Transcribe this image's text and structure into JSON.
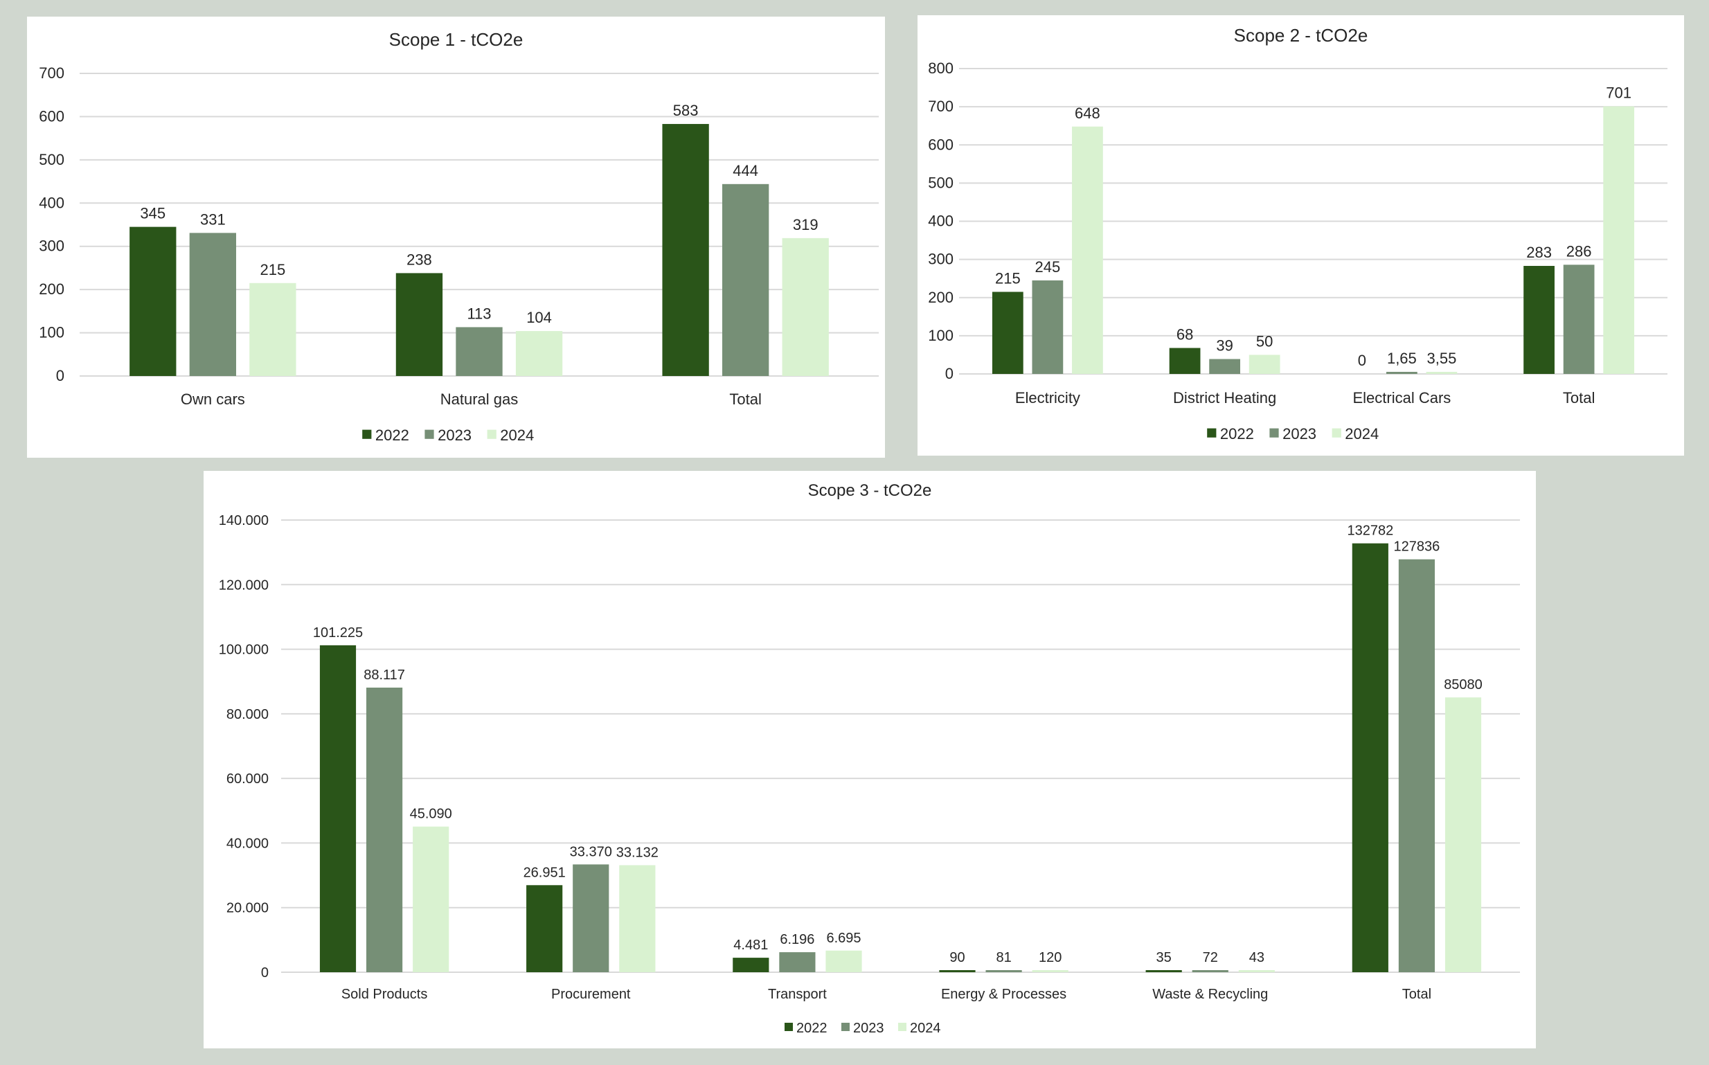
{
  "colors": {
    "2022": "#2a5519",
    "2023": "#768f76",
    "2024": "#d9f2d0",
    "grid": "#d9d9d9",
    "background": "#d0d7cf"
  },
  "chart_data": [
    {
      "type": "bar",
      "title": "Scope 1 - tCO2e",
      "categories": [
        "Own cars",
        "Natural gas",
        "Total"
      ],
      "series": [
        {
          "name": "2022",
          "values": [
            345,
            238,
            583
          ],
          "labels": [
            "345",
            "238",
            "583"
          ]
        },
        {
          "name": "2023",
          "values": [
            331,
            113,
            444
          ],
          "labels": [
            "331",
            "113",
            "444"
          ]
        },
        {
          "name": "2024",
          "values": [
            215,
            104,
            319
          ],
          "labels": [
            "215",
            "104",
            "319"
          ]
        }
      ],
      "ylim": [
        0,
        700
      ],
      "yticks": [
        "0",
        "100",
        "200",
        "300",
        "400",
        "500",
        "600",
        "700"
      ],
      "grid": true,
      "legend": "bottom"
    },
    {
      "type": "bar",
      "title": "Scope 2 - tCO2e",
      "categories": [
        "Electricity",
        "District Heating",
        "Electrical Cars",
        "Total"
      ],
      "series": [
        {
          "name": "2022",
          "values": [
            215,
            68,
            0,
            283
          ],
          "labels": [
            "215",
            "68",
            "0",
            "283"
          ]
        },
        {
          "name": "2023",
          "values": [
            245,
            39,
            1.65,
            286
          ],
          "labels": [
            "245",
            "39",
            "1,65",
            "286"
          ]
        },
        {
          "name": "2024",
          "values": [
            648,
            50,
            3.55,
            701
          ],
          "labels": [
            "648",
            "50",
            "3,55",
            "701"
          ]
        }
      ],
      "ylim": [
        0,
        800
      ],
      "yticks": [
        "0",
        "100",
        "200",
        "300",
        "400",
        "500",
        "600",
        "700",
        "800"
      ],
      "grid": true,
      "legend": "bottom"
    },
    {
      "type": "bar",
      "title": "Scope 3 - tCO2e",
      "categories": [
        "Sold Products",
        "Procurement",
        "Transport",
        "Energy & Processes",
        "Waste & Recycling",
        "Total"
      ],
      "series": [
        {
          "name": "2022",
          "values": [
            101225,
            26951,
            4481,
            90,
            35,
            132782
          ],
          "labels": [
            "101.225",
            "26.951",
            "4.481",
            "90",
            "35",
            "132782"
          ]
        },
        {
          "name": "2023",
          "values": [
            88117,
            33370,
            6196,
            81,
            72,
            127836
          ],
          "labels": [
            "88.117",
            "33.370",
            "6.196",
            "81",
            "72",
            "127836"
          ]
        },
        {
          "name": "2024",
          "values": [
            45090,
            33132,
            6695,
            120,
            43,
            85080
          ],
          "labels": [
            "45.090",
            "33.132",
            "6.695",
            "120",
            "43",
            "85080"
          ]
        }
      ],
      "ylim": [
        0,
        140000
      ],
      "yticks": [
        "0",
        "20.000",
        "40.000",
        "60.000",
        "80.000",
        "100.000",
        "120.000",
        "140.000"
      ],
      "grid": true,
      "legend": "bottom"
    }
  ]
}
